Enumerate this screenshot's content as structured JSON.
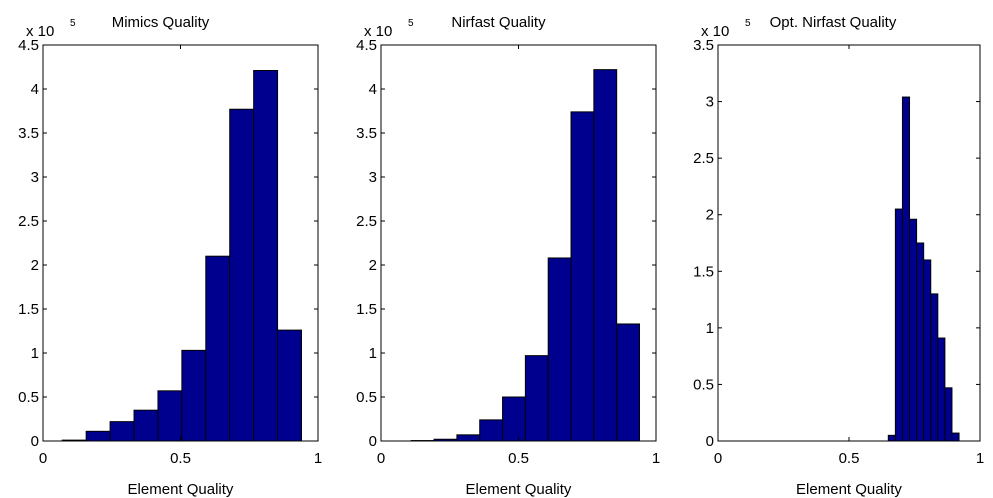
{
  "colors": {
    "bar_fill": "#00008f",
    "bar_edge": "#000000",
    "axis": "#000000",
    "background": "#ffffff"
  },
  "chart_data": [
    {
      "type": "bar",
      "title": "Mimics Quality",
      "xlabel": "Element Quality",
      "ylabel": "",
      "scale_multiplier": "x 10",
      "scale_exponent": "5",
      "xlim": [
        0,
        1
      ],
      "ylim": [
        0,
        4.5
      ],
      "x_ticks": [
        "0",
        "0.5",
        "1"
      ],
      "x_tick_values": [
        0,
        0.5,
        1
      ],
      "y_ticks": [
        "0",
        "0.5",
        "1",
        "1.5",
        "2",
        "2.5",
        "3",
        "3.5",
        "4",
        "4.5"
      ],
      "y_tick_values": [
        0,
        0.5,
        1,
        1.5,
        2,
        2.5,
        3,
        3.5,
        4,
        4.5
      ],
      "bins": [
        {
          "start": 0.07,
          "end": 0.157,
          "value": 0.01
        },
        {
          "start": 0.157,
          "end": 0.244,
          "value": 0.11
        },
        {
          "start": 0.244,
          "end": 0.331,
          "value": 0.22
        },
        {
          "start": 0.331,
          "end": 0.418,
          "value": 0.35
        },
        {
          "start": 0.418,
          "end": 0.505,
          "value": 0.57
        },
        {
          "start": 0.505,
          "end": 0.592,
          "value": 1.03
        },
        {
          "start": 0.592,
          "end": 0.679,
          "value": 2.1
        },
        {
          "start": 0.679,
          "end": 0.766,
          "value": 3.77
        },
        {
          "start": 0.766,
          "end": 0.853,
          "value": 4.21
        },
        {
          "start": 0.853,
          "end": 0.94,
          "value": 1.26
        }
      ]
    },
    {
      "type": "bar",
      "title": "Nirfast Quality",
      "xlabel": "Element Quality",
      "ylabel": "",
      "scale_multiplier": "x 10",
      "scale_exponent": "5",
      "xlim": [
        0,
        1
      ],
      "ylim": [
        0,
        4.5
      ],
      "x_ticks": [
        "0",
        "0.5",
        "1"
      ],
      "x_tick_values": [
        0,
        0.5,
        1
      ],
      "y_ticks": [
        "0",
        "0.5",
        "1",
        "1.5",
        "2",
        "2.5",
        "3",
        "3.5",
        "4",
        "4.5"
      ],
      "y_tick_values": [
        0,
        0.5,
        1,
        1.5,
        2,
        2.5,
        3,
        3.5,
        4,
        4.5
      ],
      "bins": [
        {
          "start": 0.11,
          "end": 0.193,
          "value": 0.005
        },
        {
          "start": 0.193,
          "end": 0.276,
          "value": 0.02
        },
        {
          "start": 0.276,
          "end": 0.359,
          "value": 0.07
        },
        {
          "start": 0.359,
          "end": 0.442,
          "value": 0.24
        },
        {
          "start": 0.442,
          "end": 0.525,
          "value": 0.5
        },
        {
          "start": 0.525,
          "end": 0.608,
          "value": 0.97
        },
        {
          "start": 0.608,
          "end": 0.691,
          "value": 2.08
        },
        {
          "start": 0.691,
          "end": 0.774,
          "value": 3.74
        },
        {
          "start": 0.774,
          "end": 0.857,
          "value": 4.22
        },
        {
          "start": 0.857,
          "end": 0.94,
          "value": 1.33
        }
      ]
    },
    {
      "type": "bar",
      "title": "Opt. Nirfast Quality",
      "xlabel": "Element Quality",
      "ylabel": "",
      "scale_multiplier": "x 10",
      "scale_exponent": "5",
      "xlim": [
        0,
        1
      ],
      "ylim": [
        0,
        3.5
      ],
      "x_ticks": [
        "0",
        "0.5",
        "1"
      ],
      "x_tick_values": [
        0,
        0.5,
        1
      ],
      "y_ticks": [
        "0",
        "0.5",
        "1",
        "1.5",
        "2",
        "2.5",
        "3",
        "3.5"
      ],
      "y_tick_values": [
        0,
        0.5,
        1,
        1.5,
        2,
        2.5,
        3,
        3.5
      ],
      "bins": [
        {
          "start": 0.65,
          "end": 0.677,
          "value": 0.05
        },
        {
          "start": 0.677,
          "end": 0.704,
          "value": 2.05
        },
        {
          "start": 0.704,
          "end": 0.731,
          "value": 3.04
        },
        {
          "start": 0.731,
          "end": 0.758,
          "value": 1.96
        },
        {
          "start": 0.758,
          "end": 0.785,
          "value": 1.75
        },
        {
          "start": 0.785,
          "end": 0.812,
          "value": 1.6
        },
        {
          "start": 0.812,
          "end": 0.839,
          "value": 1.3
        },
        {
          "start": 0.839,
          "end": 0.866,
          "value": 0.91
        },
        {
          "start": 0.866,
          "end": 0.893,
          "value": 0.47
        },
        {
          "start": 0.893,
          "end": 0.92,
          "value": 0.07
        }
      ]
    }
  ]
}
